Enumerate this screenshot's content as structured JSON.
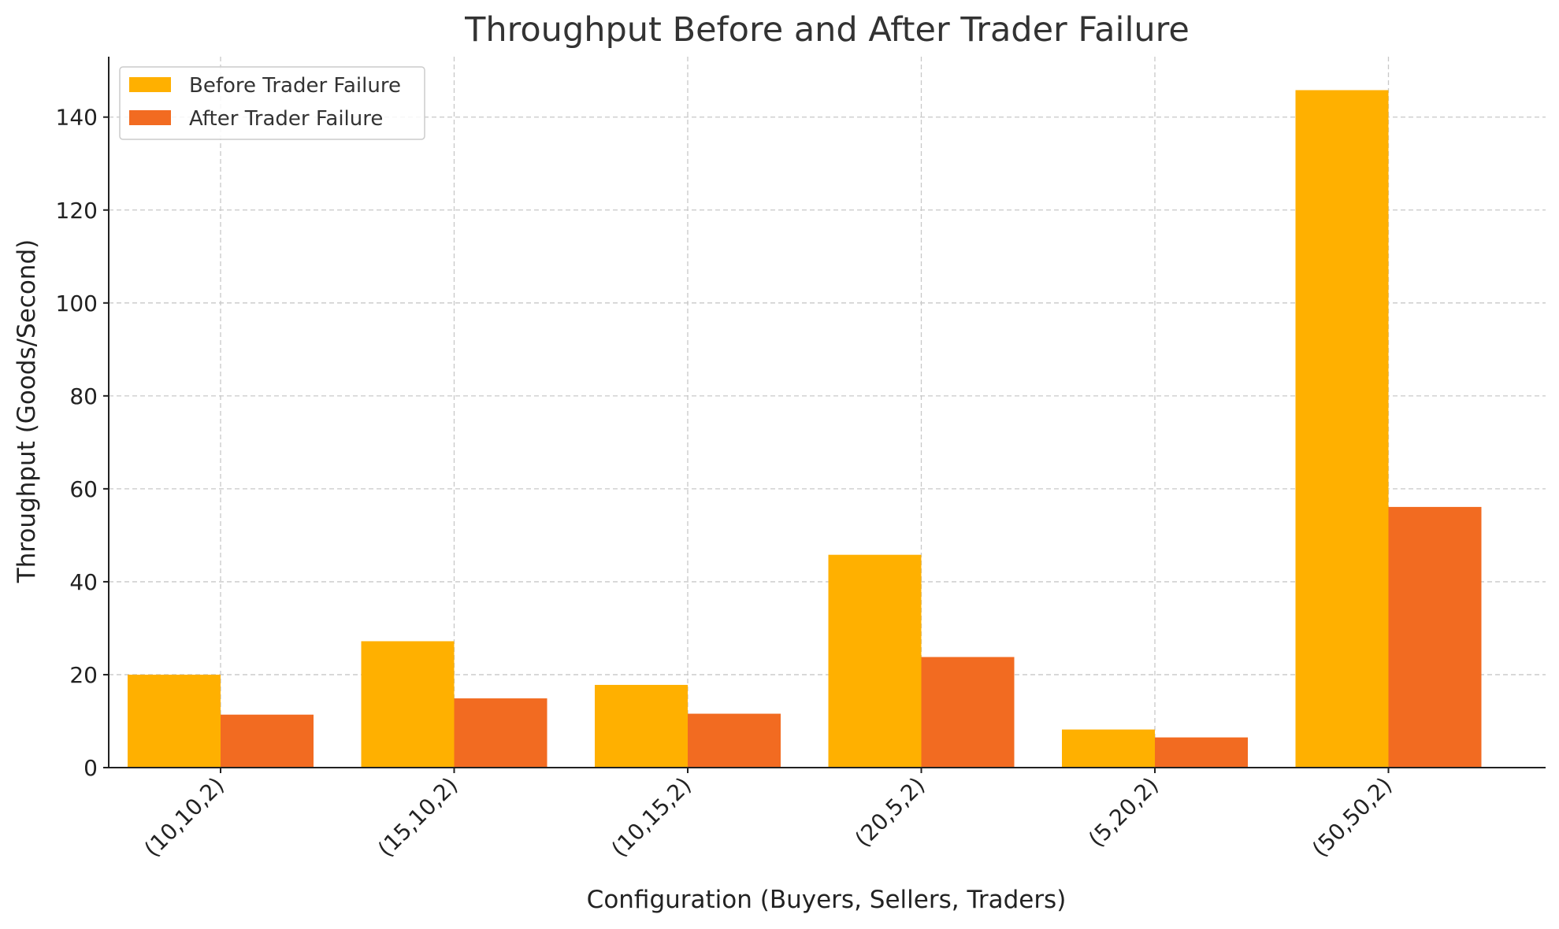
{
  "chart_data": {
    "type": "bar",
    "title": "Throughput Before and After Trader Failure",
    "xlabel": "Configuration (Buyers, Sellers, Traders)",
    "ylabel": "Throughput (Goods/Second)",
    "categories": [
      "(10,10,2)",
      "(15,10,2)",
      "(10,15,2)",
      "(20,5,2)",
      "(5,20,2)",
      "(50,50,2)"
    ],
    "series": [
      {
        "name": "Before Trader Failure",
        "color": "#FFB000",
        "values": [
          20.0,
          27.2,
          17.8,
          45.8,
          8.2,
          145.8
        ]
      },
      {
        "name": "After Trader Failure",
        "color": "#F26B21",
        "values": [
          11.4,
          14.9,
          11.6,
          23.8,
          6.5,
          56.1
        ]
      }
    ],
    "ylim": [
      0,
      153
    ],
    "yticks": [
      0,
      20,
      40,
      60,
      80,
      100,
      120,
      140
    ],
    "grid": true,
    "legend_position": "top-left"
  }
}
